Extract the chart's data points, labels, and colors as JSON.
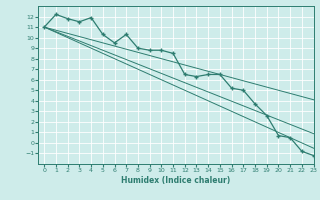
{
  "xlabel": "Humidex (Indice chaleur)",
  "x": [
    0,
    1,
    2,
    3,
    4,
    5,
    6,
    7,
    8,
    9,
    10,
    11,
    12,
    13,
    14,
    15,
    16,
    17,
    18,
    19,
    20,
    21,
    22,
    23
  ],
  "line_main": [
    11.0,
    12.2,
    11.8,
    11.5,
    11.9,
    10.3,
    9.5,
    10.3,
    9.0,
    8.8,
    8.8,
    8.5,
    6.5,
    6.3,
    6.5,
    6.5,
    5.2,
    5.0,
    3.7,
    2.6,
    0.7,
    0.5,
    -0.8,
    -1.2
  ],
  "line_straight_top": [
    11.0,
    10.7,
    10.4,
    10.1,
    9.8,
    9.5,
    9.2,
    8.9,
    8.6,
    8.3,
    8.0,
    7.7,
    7.4,
    7.1,
    6.8,
    6.5,
    6.2,
    5.9,
    5.6,
    5.3,
    5.0,
    4.7,
    4.4,
    4.1
  ],
  "line_straight_mid": [
    11.0,
    10.5,
    10.0,
    9.5,
    9.0,
    8.5,
    8.0,
    7.5,
    7.0,
    6.5,
    6.0,
    5.5,
    5.0,
    4.5,
    4.0,
    3.5,
    3.0,
    2.5,
    2.0,
    1.5,
    1.0,
    0.5,
    0.0,
    -0.5
  ],
  "line_straight_bot": [
    11.0,
    10.56,
    10.12,
    9.68,
    9.24,
    8.8,
    8.36,
    7.92,
    7.48,
    7.04,
    6.6,
    6.16,
    5.72,
    5.28,
    4.84,
    4.4,
    3.96,
    3.52,
    3.08,
    2.64,
    2.2,
    1.76,
    1.32,
    0.88
  ],
  "color": "#2e7d70",
  "bg_color": "#ceecea",
  "grid_color": "#b8dbd9",
  "ylim": [
    -2,
    13
  ],
  "xlim": [
    -0.5,
    23
  ]
}
